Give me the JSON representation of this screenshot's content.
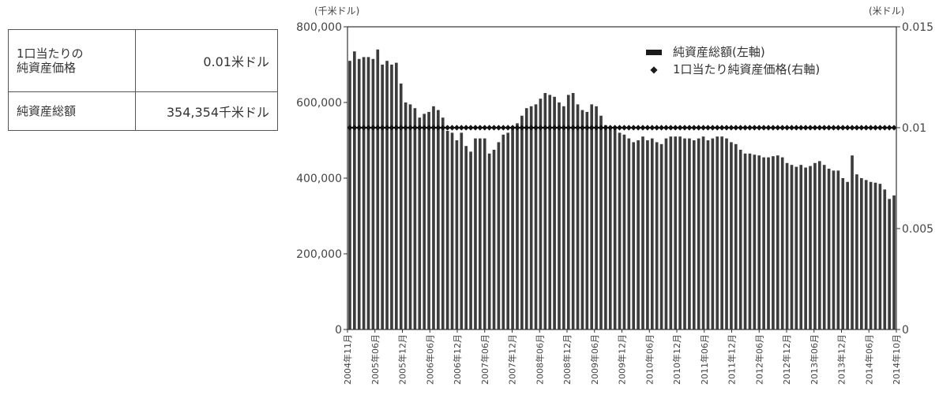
{
  "table": {
    "rows": [
      {
        "label": "1口当たりの\n純資産価格",
        "value": "0.01米ドル"
      },
      {
        "label": "純資産総額",
        "value": "354,354千米ドル"
      }
    ]
  },
  "chart_data": {
    "type": "bar",
    "left_unit": "(千米ドル)",
    "right_unit": "(米ドル)",
    "left_ylim": [
      0,
      800000
    ],
    "right_ylim": [
      0,
      0.015
    ],
    "left_ticks": [
      "800,000",
      "600,000",
      "400,000",
      "200,000",
      "0"
    ],
    "right_ticks": [
      "0.015",
      "0.01",
      "0.005",
      "0"
    ],
    "x_tick_labels": [
      "2004年11月",
      "2005年06月",
      "2005年12月",
      "2006年06月",
      "2006年12月",
      "2007年06月",
      "2007年12月",
      "2008年06月",
      "2008年12月",
      "2009年06月",
      "2009年12月",
      "2010年06月",
      "2010年12月",
      "2011年06月",
      "2011年12月",
      "2012年06月",
      "2012年12月",
      "2013年06月",
      "2013年12月",
      "2014年06月",
      "2014年10月"
    ],
    "legend": [
      "純資産総額(左軸)",
      "1口当たり純資産価格(右軸)"
    ],
    "series": [
      {
        "name": "純資産総額(左軸)",
        "axis": "left",
        "kind": "bar",
        "values": [
          710000,
          735000,
          715000,
          720000,
          720000,
          715000,
          740000,
          700000,
          710000,
          700000,
          705000,
          650000,
          600000,
          595000,
          585000,
          560000,
          570000,
          575000,
          590000,
          580000,
          560000,
          525000,
          520000,
          500000,
          520000,
          485000,
          470000,
          505000,
          505000,
          505000,
          465000,
          475000,
          495000,
          515000,
          520000,
          535000,
          545000,
          565000,
          585000,
          590000,
          595000,
          610000,
          625000,
          620000,
          615000,
          600000,
          590000,
          620000,
          625000,
          595000,
          580000,
          575000,
          595000,
          590000,
          565000,
          540000,
          535000,
          530000,
          520000,
          515000,
          505000,
          495000,
          500000,
          510000,
          500000,
          505000,
          495000,
          490000,
          505000,
          510000,
          510000,
          510000,
          505000,
          505000,
          500000,
          505000,
          510000,
          500000,
          505000,
          510000,
          510000,
          505000,
          495000,
          490000,
          475000,
          465000,
          465000,
          462000,
          460000,
          455000,
          455000,
          458000,
          460000,
          455000,
          440000,
          435000,
          430000,
          435000,
          428000,
          432000,
          440000,
          445000,
          435000,
          425000,
          420000,
          420000,
          400000,
          390000,
          460000,
          410000,
          400000,
          395000,
          390000,
          388000,
          385000,
          370000,
          345000,
          354354
        ]
      },
      {
        "name": "1口当たり純資産価格(右軸)",
        "axis": "right",
        "kind": "line-marker",
        "value_constant": 0.01
      }
    ]
  }
}
